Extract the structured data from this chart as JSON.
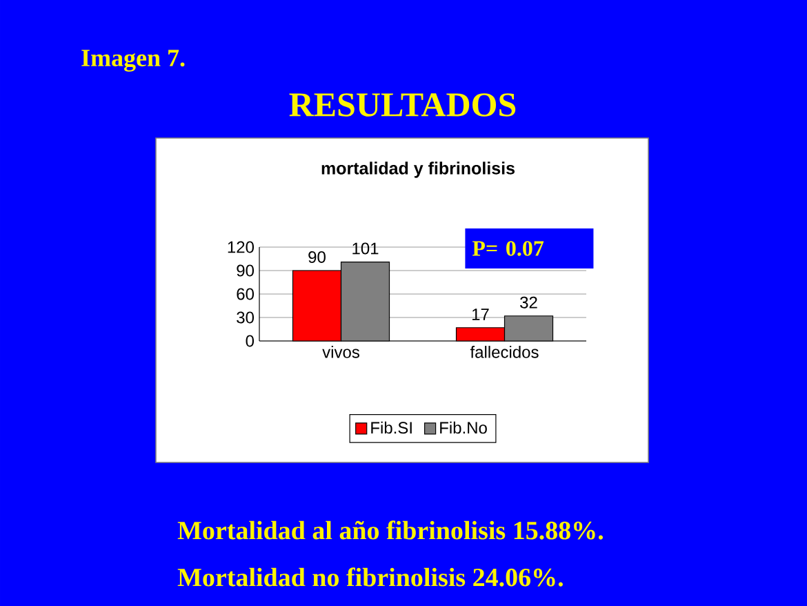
{
  "chart_data": {
    "type": "bar",
    "title": "RESULTADOS",
    "subtitle": "mortalidad y fibrinolisis",
    "annotations": [
      "Imagen 7.",
      "P= 0.07",
      "Mortalidad al año fibrinolisis 15.88%.",
      "Mortalidad no fibrinolisis 24.06%."
    ],
    "categories": [
      "vivos",
      "fallecidos"
    ],
    "series": [
      {
        "name": "Fib.SI",
        "color": "#ff0000",
        "values": [
          90,
          17
        ]
      },
      {
        "name": "Fib.No",
        "color": "#808080",
        "values": [
          101,
          32
        ]
      }
    ],
    "ylim": [
      0,
      120
    ],
    "yticks": [
      0,
      30,
      60,
      90,
      120
    ],
    "grid": "y",
    "legend": "bottom",
    "data_labels": true
  }
}
